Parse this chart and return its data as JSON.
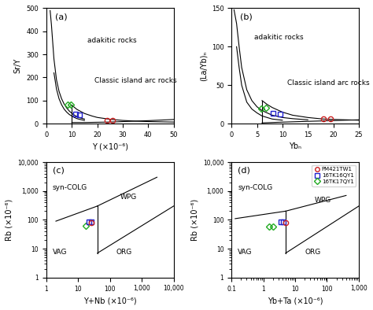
{
  "panel_a": {
    "label": "(a)",
    "xlabel": "Y (×10⁻⁶)",
    "ylabel": "Sr/Y",
    "xlim": [
      0,
      50
    ],
    "ylim": [
      0,
      500
    ],
    "yticks": [
      0,
      100,
      200,
      300,
      400,
      500
    ],
    "xticks": [
      0,
      10,
      20,
      30,
      40,
      50
    ],
    "adakitic_label": "adakitic rocks",
    "classic_label": "Classic island arc rocks",
    "data_green": {
      "x": [
        8.5,
        9.5
      ],
      "y": [
        82,
        82
      ]
    },
    "data_blue": {
      "x": [
        11.5,
        13.0
      ],
      "y": [
        40,
        38
      ]
    },
    "data_red": {
      "x": [
        24,
        26
      ],
      "y": [
        13,
        13
      ]
    }
  },
  "panel_b": {
    "label": "(b)",
    "xlabel": "Ybₙ",
    "ylabel": "(La/Yb)ₙ",
    "xlim": [
      0,
      25
    ],
    "ylim": [
      0,
      150
    ],
    "yticks": [
      0,
      50,
      100,
      150
    ],
    "xticks": [
      0,
      5,
      10,
      15,
      20,
      25
    ],
    "adakitic_label": "adakitic rocks",
    "classic_label": "Classic island arc rocks",
    "data_green": {
      "x": [
        5.8,
        6.8
      ],
      "y": [
        20,
        21
      ]
    },
    "data_blue": {
      "x": [
        8.2,
        9.5
      ],
      "y": [
        13,
        12
      ]
    },
    "data_red": {
      "x": [
        18.0,
        19.5
      ],
      "y": [
        6,
        6
      ]
    }
  },
  "panel_c": {
    "label": "(c)",
    "xlabel": "Y+Nb (×10⁻⁶)",
    "ylabel": "Rb (×10⁻⁶)",
    "xlim_log": [
      1,
      10000
    ],
    "ylim_log": [
      1,
      10000
    ],
    "data_green": {
      "x": [
        17
      ],
      "y": [
        62
      ]
    },
    "data_blue": {
      "x": [
        22,
        26
      ],
      "y": [
        85,
        85
      ]
    },
    "data_red": {
      "x": [
        26
      ],
      "y": [
        82
      ]
    }
  },
  "panel_d": {
    "label": "(d)",
    "xlabel": "Yb+Ta (×10⁻⁶)",
    "ylabel": "Rb (×10⁻⁶)",
    "xlim_log": [
      0.1,
      1000
    ],
    "ylim_log": [
      1,
      10000
    ],
    "data_green": {
      "x": [
        1.5,
        2.0
      ],
      "y": [
        60,
        57
      ]
    },
    "data_blue": {
      "x": [
        3.5,
        4.2
      ],
      "y": [
        85,
        85
      ]
    },
    "data_red": {
      "x": [
        5.0
      ],
      "y": [
        82
      ]
    }
  },
  "colors": {
    "green": "#22aa22",
    "blue": "#2222cc",
    "red": "#cc2222"
  },
  "legend": [
    {
      "label": "PM421TW1",
      "color": "#cc2222",
      "marker": "o"
    },
    {
      "label": "16TK16QY1",
      "color": "#2222cc",
      "marker": "s"
    },
    {
      "label": "16TK17QY1",
      "color": "#22aa22",
      "marker": "D"
    }
  ]
}
